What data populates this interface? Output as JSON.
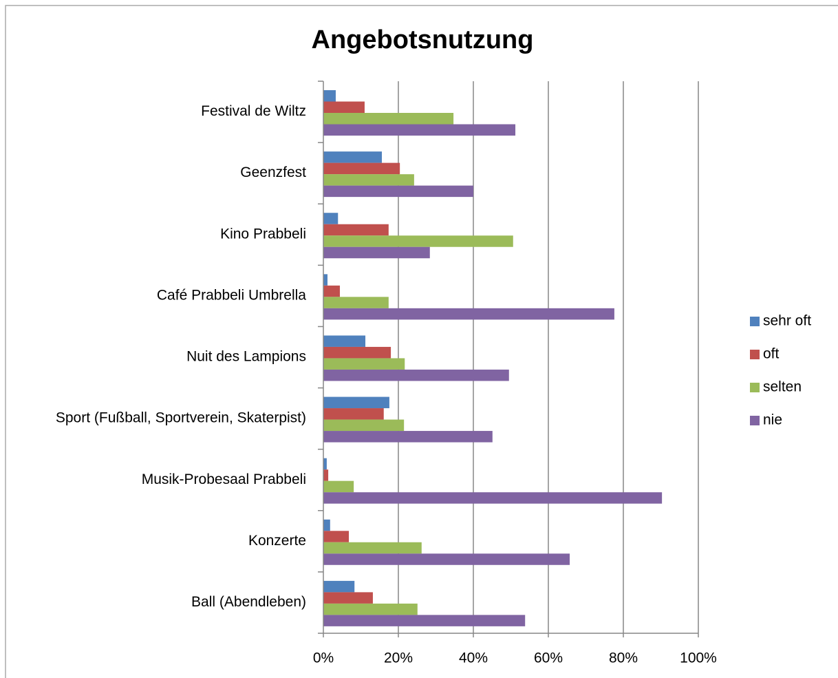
{
  "chart_data": {
    "type": "bar",
    "orientation": "horizontal",
    "title": "Angebotsnutzung",
    "categories": [
      "Festival de Wiltz",
      "Geenzfest",
      "Kino Prabbeli",
      "Café Prabbeli Umbrella",
      "Nuit des Lampions",
      "Sport (Fußball, Sportverein, Skaterpist)",
      "Musik-Probesaal Prabbeli",
      "Konzerte",
      "Ball (Abendleben)"
    ],
    "series": [
      {
        "name": "sehr oft",
        "color": "#4f81bd",
        "values": [
          3.3,
          15.6,
          3.9,
          1.1,
          11.2,
          17.6,
          0.9,
          1.8,
          8.3
        ]
      },
      {
        "name": "oft",
        "color": "#c0504d",
        "values": [
          11,
          20.4,
          17.4,
          4.4,
          18,
          16.1,
          1.3,
          6.8,
          13.2
        ]
      },
      {
        "name": "selten",
        "color": "#9bbb59",
        "values": [
          34.7,
          24.2,
          50.6,
          17.4,
          21.7,
          21.5,
          8.1,
          26.2,
          25.1
        ]
      },
      {
        "name": "nie",
        "color": "#8064a2",
        "values": [
          51.2,
          40,
          28.4,
          77.6,
          49.5,
          45.1,
          90.3,
          65.7,
          53.8
        ]
      }
    ],
    "xlim": [
      0,
      100
    ],
    "xticks": [
      {
        "value": 0,
        "label": "0%"
      },
      {
        "value": 20,
        "label": "20%"
      },
      {
        "value": 40,
        "label": "40%"
      },
      {
        "value": 60,
        "label": "60%"
      },
      {
        "value": 80,
        "label": "80%"
      },
      {
        "value": 100,
        "label": "100%"
      }
    ],
    "grid": true,
    "legend": "right"
  }
}
